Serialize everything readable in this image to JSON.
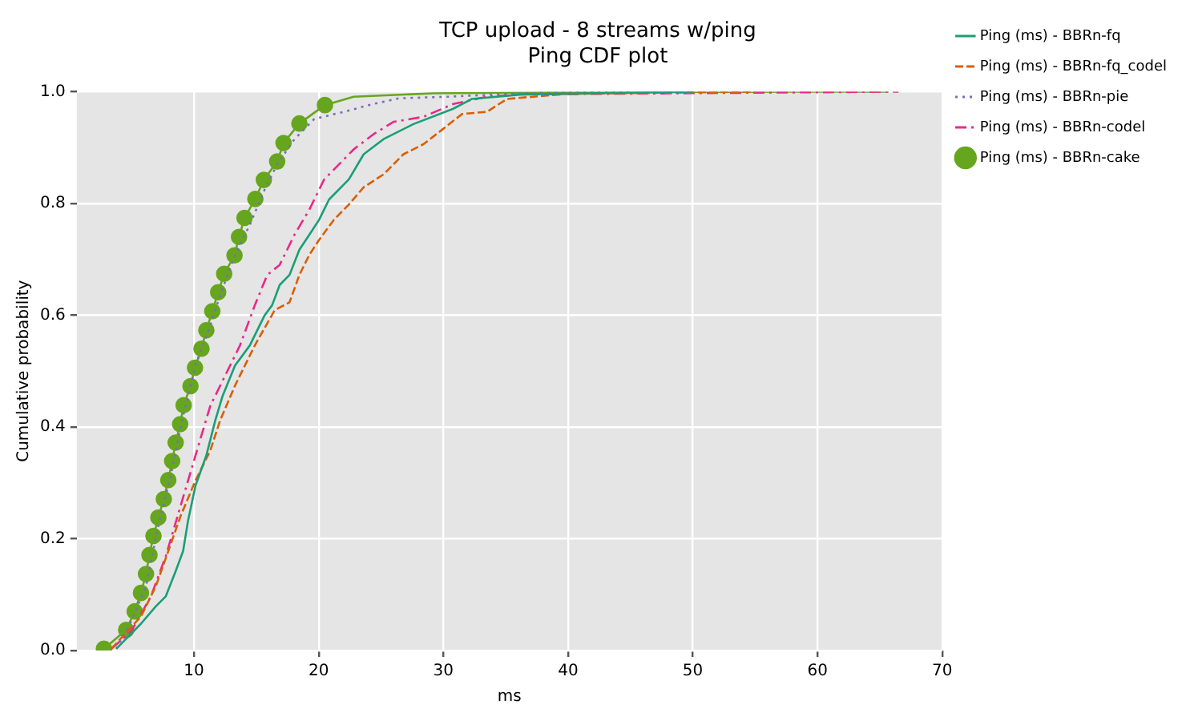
{
  "chart_data": {
    "type": "line",
    "title": "TCP upload - 8 streams w/ping",
    "subtitle": "Ping CDF plot",
    "xlabel": "ms",
    "ylabel": "Cumulative probability",
    "xlim": [
      0.6,
      70
    ],
    "xticks": [
      10,
      20,
      30,
      40,
      50,
      60,
      70
    ],
    "ylim": [
      0,
      1
    ],
    "yticks": [
      {
        "value": 0,
        "label": "0.0"
      },
      {
        "value": 0.2,
        "label": "0.2"
      },
      {
        "value": 0.4,
        "label": "0.4"
      },
      {
        "value": 0.6,
        "label": "0.6"
      },
      {
        "value": 0.8,
        "label": "0.8"
      },
      {
        "value": 1,
        "label": "1.0"
      }
    ],
    "grid": true,
    "legend": "right",
    "series": [
      {
        "name": "Ping (ms) - BBRn-fq",
        "color": "#1b9e77",
        "line_style": "solid",
        "marker": "none",
        "x": [
          3.77,
          4.56,
          5.75,
          6.94,
          7.74,
          8.53,
          9.13,
          9.52,
          10.12,
          10.99,
          11.71,
          12.3,
          13.29,
          14.48,
          15.67,
          16.27,
          16.87,
          17.66,
          18.45,
          19.25,
          20.04,
          20.83,
          22.42,
          23.61,
          25.2,
          27.6,
          30.75,
          32.3,
          36.3,
          50
        ],
        "values": [
          0.003,
          0.021,
          0.048,
          0.079,
          0.097,
          0.142,
          0.178,
          0.232,
          0.295,
          0.349,
          0.412,
          0.456,
          0.51,
          0.546,
          0.6,
          0.618,
          0.654,
          0.672,
          0.717,
          0.744,
          0.771,
          0.807,
          0.843,
          0.888,
          0.915,
          0.942,
          0.969,
          0.987,
          0.995,
          1
        ]
      },
      {
        "name": "Ping (ms) - BBRn-fq_codel",
        "color": "#d95f02",
        "line_style": "dashed",
        "marker": "none",
        "x": [
          3.37,
          5.75,
          6.94,
          7.94,
          8.93,
          10.12,
          11.31,
          12.1,
          13.29,
          14.88,
          16.47,
          17.66,
          18.45,
          19.25,
          20.04,
          21.23,
          22.42,
          23.61,
          25.2,
          26.8,
          28.4,
          29.96,
          31.5,
          33.5,
          35.1,
          39.9,
          55
        ],
        "values": [
          0.003,
          0.061,
          0.115,
          0.178,
          0.241,
          0.304,
          0.358,
          0.412,
          0.474,
          0.546,
          0.609,
          0.623,
          0.672,
          0.708,
          0.735,
          0.771,
          0.798,
          0.829,
          0.852,
          0.888,
          0.906,
          0.933,
          0.96,
          0.964,
          0.987,
          0.996,
          1
        ]
      },
      {
        "name": "Ping (ms) - BBRn-pie",
        "color": "#7570b3",
        "line_style": "dotted",
        "marker": "none",
        "x": [
          3.77,
          4.96,
          6.15,
          7.14,
          8.13,
          9.13,
          10.12,
          11.31,
          12.1,
          13.29,
          14.48,
          15.67,
          16.67,
          18.06,
          19.64,
          22.02,
          24.4,
          26.4,
          30.4,
          36.3,
          45
        ],
        "values": [
          0.003,
          0.052,
          0.115,
          0.223,
          0.313,
          0.42,
          0.51,
          0.582,
          0.636,
          0.708,
          0.762,
          0.825,
          0.87,
          0.915,
          0.951,
          0.964,
          0.978,
          0.988,
          0.991,
          0.997,
          1
        ]
      },
      {
        "name": "Ping (ms) - BBRn-codel",
        "color": "#e7298a",
        "line_style": "dashdot",
        "marker": "none",
        "x": [
          3.37,
          4.96,
          6.55,
          7.74,
          8.93,
          10.12,
          11.31,
          12.5,
          13.69,
          14.88,
          15.87,
          16.87,
          18.06,
          19.25,
          20.44,
          21.63,
          22.82,
          24.4,
          26,
          28.4,
          30.8,
          33.5,
          36.3,
          66.5
        ],
        "values": [
          0.003,
          0.034,
          0.097,
          0.169,
          0.259,
          0.349,
          0.438,
          0.492,
          0.546,
          0.618,
          0.672,
          0.69,
          0.744,
          0.789,
          0.843,
          0.87,
          0.897,
          0.924,
          0.946,
          0.955,
          0.978,
          0.991,
          0.995,
          1
        ]
      },
      {
        "name": "Ping (ms) - BBRn-cake",
        "color": "#66a61e",
        "line_style": "solid",
        "marker": "circle",
        "x": [
          2.78,
          4.56,
          5.24,
          5.75,
          6.15,
          6.43,
          6.75,
          7.14,
          7.58,
          7.94,
          8.25,
          8.53,
          8.89,
          9.17,
          9.72,
          10.08,
          10.6,
          10.99,
          11.47,
          11.94,
          12.42,
          13.25,
          13.61,
          14.05,
          14.92,
          15.6,
          16.67,
          17.18,
          18.45,
          20.5
        ],
        "values": [
          0.003,
          0.037,
          0.07,
          0.103,
          0.137,
          0.171,
          0.205,
          0.238,
          0.271,
          0.305,
          0.339,
          0.372,
          0.405,
          0.439,
          0.473,
          0.506,
          0.54,
          0.573,
          0.607,
          0.641,
          0.674,
          0.707,
          0.74,
          0.774,
          0.808,
          0.842,
          0.875,
          0.908,
          0.943,
          0.976
        ]
      },
      {
        "color": "#66a61e",
        "line_style": "solid",
        "marker": "none",
        "x": [
          20.5,
          22.8,
          29.2,
          40,
          65.7
        ],
        "values": [
          0.976,
          0.991,
          0.997,
          0.999,
          1
        ]
      }
    ]
  }
}
